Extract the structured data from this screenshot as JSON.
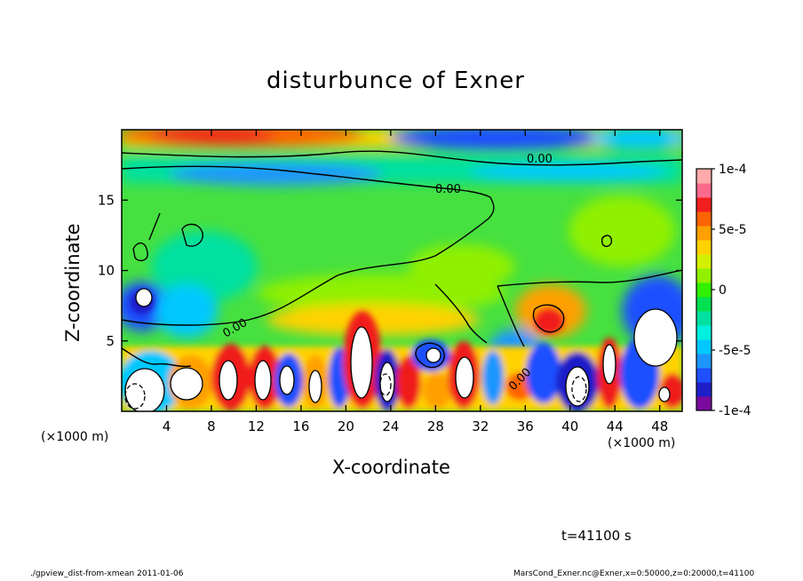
{
  "chart_data": {
    "type": "heatmap",
    "title": "disturbunce of Exner",
    "xlabel": "X-coordinate",
    "ylabel": "Z-coordinate",
    "x_unit": "(×1000 m)",
    "xlim": [
      0,
      50
    ],
    "ylim": [
      0,
      20
    ],
    "x_ticks": [
      4,
      8,
      12,
      16,
      20,
      24,
      28,
      32,
      36,
      40,
      44,
      48
    ],
    "y_ticks": [
      5,
      10,
      15
    ],
    "colorbar": {
      "range": [
        -0.0001,
        0.0001
      ],
      "ticks": [
        "1e-4",
        "5e-5",
        "0",
        "-5e-5",
        "-1e-4"
      ],
      "colors": [
        "#7a0a9e",
        "#1e1ec8",
        "#1e50ff",
        "#1e96ff",
        "#00c8ff",
        "#00f0e0",
        "#00e0a0",
        "#00e050",
        "#30f000",
        "#90f000",
        "#d2f000",
        "#ffd200",
        "#ffa000",
        "#ff6400",
        "#f01e1e",
        "#ff6a8c",
        "#ffaaaa"
      ]
    },
    "contour_labels": [
      "0.00",
      "0.00",
      "0.00",
      "0.00"
    ],
    "annotation_time": "t=41100 s"
  },
  "footer": {
    "left": "./gpview_dist-from-xmean  2011-01-06",
    "right": "MarsCond_Exner.nc@Exner,x=0:50000,z=0:20000,t=41100"
  }
}
